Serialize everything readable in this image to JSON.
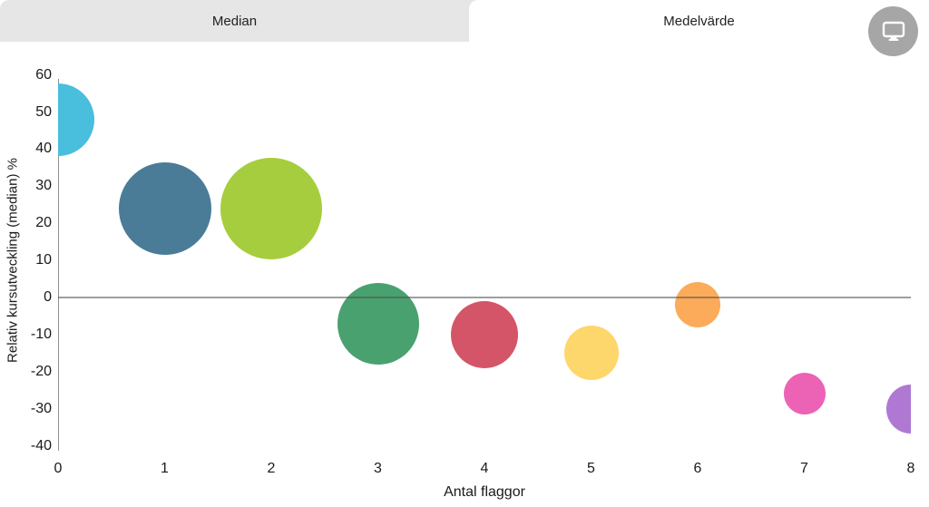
{
  "header": {
    "tabs": [
      {
        "label": "Median",
        "selected": false
      },
      {
        "label": "Medelvärde",
        "selected": true
      }
    ],
    "screen_button_icon": "monitor-icon"
  },
  "colors": {
    "tab_bar_bg": "#e6e6e6",
    "active_tab_bg": "#ffffff",
    "button_bg": "#a6a6a6",
    "axis_line": "#8f8f8f",
    "text": "#1a1a1a"
  },
  "chart_data": {
    "type": "scatter",
    "subtype": "bubble",
    "xlabel": "Antal flaggor",
    "ylabel": "Relativ kursutveckling (median) %",
    "xlim": [
      0,
      8
    ],
    "ylim": [
      -40,
      60
    ],
    "x_ticks": [
      0,
      1,
      2,
      3,
      4,
      5,
      6,
      7,
      8
    ],
    "y_ticks": [
      60,
      50,
      40,
      30,
      20,
      10,
      0,
      -10,
      -20,
      -30,
      -40
    ],
    "grid": false,
    "legend": false,
    "zero_line": true,
    "points": [
      {
        "x": 0,
        "y": 48,
        "radius_px": 40,
        "color": "#49bedd"
      },
      {
        "x": 1,
        "y": 24,
        "radius_px": 51,
        "color": "#4a7c98"
      },
      {
        "x": 2,
        "y": 24,
        "radius_px": 56,
        "color": "#a6cd3d"
      },
      {
        "x": 3,
        "y": -7,
        "radius_px": 45,
        "color": "#4aa170"
      },
      {
        "x": 4,
        "y": -10,
        "radius_px": 37,
        "color": "#d45568"
      },
      {
        "x": 5,
        "y": -15,
        "radius_px": 30,
        "color": "#fdd76c"
      },
      {
        "x": 6,
        "y": -2,
        "radius_px": 25,
        "color": "#fbab59"
      },
      {
        "x": 7,
        "y": -26,
        "radius_px": 23,
        "color": "#ec62b5"
      },
      {
        "x": 8,
        "y": -30,
        "radius_px": 27,
        "color": "#ae78d3"
      }
    ]
  }
}
